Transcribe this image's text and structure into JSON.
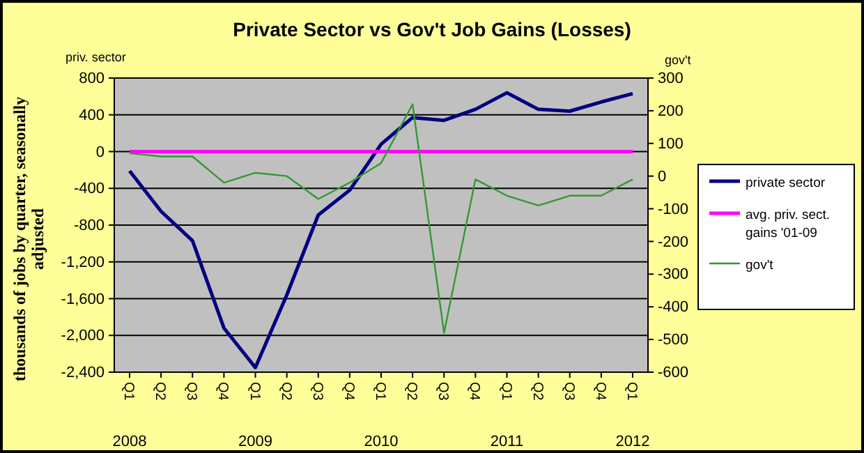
{
  "chart_data": {
    "type": "line",
    "title": "Private Sector vs Gov't Job Gains (Losses)",
    "ylabel": "thousands of jobs by quarter, seasonally adjusted",
    "y2label": "gov't",
    "annotations": [
      "priv. sector",
      "2008",
      "2009",
      "2010",
      "2011",
      "2012"
    ],
    "categories": [
      "Q1",
      "Q2",
      "Q3",
      "Q4",
      "Q1",
      "Q2",
      "Q3",
      "Q4",
      "Q1",
      "Q2",
      "Q3",
      "Q4",
      "Q1",
      "Q2",
      "Q3",
      "Q4",
      "Q1"
    ],
    "series": [
      {
        "name": "private sector",
        "color": "#000080",
        "values": [
          -210,
          -650,
          -970,
          -1920,
          -2350,
          -1560,
          -690,
          -420,
          80,
          370,
          340,
          460,
          640,
          460,
          440,
          540,
          630
        ]
      },
      {
        "name": "avg. priv. sect. gains '01-09",
        "color": "#ff00ff",
        "values": [
          0,
          0,
          0,
          0,
          0,
          0,
          0,
          0,
          0,
          0,
          0,
          0,
          0,
          0,
          0,
          0,
          0
        ]
      },
      {
        "name": "gov't",
        "color": "#339933",
        "axis": "y2",
        "values": [
          70,
          60,
          60,
          -20,
          10,
          0,
          -70,
          -20,
          40,
          220,
          -480,
          -10,
          -60,
          -90,
          -60,
          -60,
          -10
        ]
      }
    ],
    "ylim": [
      -2400,
      800
    ],
    "yticks": [
      {
        "value": -2400,
        "label": "-2,400"
      },
      {
        "value": -2000,
        "label": "-2,000"
      },
      {
        "value": -1600,
        "label": "-1,600"
      },
      {
        "value": -1200,
        "label": "-1,200"
      },
      -800,
      -400,
      0,
      400,
      800
    ],
    "y2lim": [
      -600,
      300
    ],
    "y2ticks": [
      -600,
      -500,
      -400,
      -300,
      -200,
      -100,
      0,
      100,
      200,
      300
    ],
    "grid": "y",
    "legend": "right",
    "marker": "none",
    "line_style": "solid"
  }
}
